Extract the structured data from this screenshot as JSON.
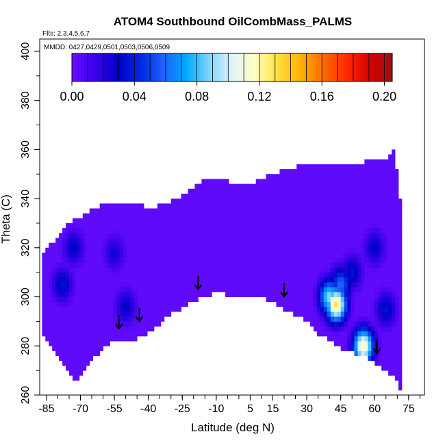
{
  "chart_data": {
    "type": "heatmap",
    "title": "ATOM4 Southbound OilCombMass_PALMS",
    "flights_note": "Flts: 2,3,4,5,6,7",
    "dates_note": "MMDD: 0427,0429,0501,0503,0506,0509",
    "xlabel": "Latitude (deg N)",
    "ylabel": "Theta (C)",
    "xlim": [
      -88,
      82
    ],
    "ylim": [
      260,
      405
    ],
    "x_ticks": [
      -85,
      -70,
      -55,
      -40,
      -25,
      -10,
      5,
      15,
      30,
      45,
      60,
      75
    ],
    "y_ticks": [
      260,
      280,
      300,
      320,
      340,
      360,
      380,
      400
    ],
    "colorbar": {
      "ticks": [
        "0.00",
        "0.04",
        "0.08",
        "0.12",
        "0.16",
        "0.20"
      ],
      "tick_values": [
        0.0,
        0.04,
        0.08,
        0.12,
        0.16,
        0.2
      ],
      "range": [
        0.0,
        0.205
      ],
      "colors": [
        "#6a0dff",
        "#3b00e8",
        "#0000c8",
        "#0028e0",
        "#2060ff",
        "#00aaff",
        "#80d4ff",
        "#e0f4ff",
        "#ffffc0",
        "#ffe040",
        "#ffb000",
        "#ff6a00",
        "#ff2a00",
        "#d40000",
        "#a01010"
      ]
    },
    "background_value": 0.003,
    "domain_top": [
      [
        -87,
        317
      ],
      [
        -75,
        330
      ],
      [
        -60,
        338
      ],
      [
        -48,
        339
      ],
      [
        -38,
        336
      ],
      [
        -25,
        341
      ],
      [
        -15,
        348
      ],
      [
        -5,
        347
      ],
      [
        5,
        346
      ],
      [
        15,
        350
      ],
      [
        25,
        353
      ],
      [
        40,
        354
      ],
      [
        55,
        355
      ],
      [
        65,
        356
      ],
      [
        69,
        360
      ],
      [
        71,
        340
      ]
    ],
    "domain_bottom": [
      [
        -87,
        286
      ],
      [
        -80,
        276
      ],
      [
        -75,
        269
      ],
      [
        -72,
        266
      ],
      [
        -68,
        271
      ],
      [
        -60,
        279
      ],
      [
        -55,
        282
      ],
      [
        -47,
        282
      ],
      [
        -40,
        285
      ],
      [
        -30,
        293
      ],
      [
        -20,
        298
      ],
      [
        -10,
        302
      ],
      [
        0,
        299
      ],
      [
        10,
        300
      ],
      [
        20,
        295
      ],
      [
        30,
        290
      ],
      [
        35,
        285
      ],
      [
        45,
        279
      ],
      [
        55,
        276
      ],
      [
        65,
        270
      ],
      [
        70,
        266
      ],
      [
        71,
        262
      ]
    ],
    "plumes": [
      {
        "lat": -78,
        "theta": 305,
        "value": 0.035
      },
      {
        "lat": -73,
        "theta": 320,
        "value": 0.03
      },
      {
        "lat": -55,
        "theta": 318,
        "value": 0.025
      },
      {
        "lat": -50,
        "theta": 296,
        "value": 0.03
      },
      {
        "lat": 40,
        "theta": 300,
        "value": 0.09
      },
      {
        "lat": 43,
        "theta": 297,
        "value": 0.13
      },
      {
        "lat": 45,
        "theta": 305,
        "value": 0.06
      },
      {
        "lat": 50,
        "theta": 310,
        "value": 0.035
      },
      {
        "lat": 55,
        "theta": 280,
        "value": 0.12
      },
      {
        "lat": 60,
        "theta": 320,
        "value": 0.03
      },
      {
        "lat": 65,
        "theta": 295,
        "value": 0.035
      }
    ],
    "arrows": [
      {
        "lat": -53,
        "theta": 287
      },
      {
        "lat": -44,
        "theta": 290
      },
      {
        "lat": -18,
        "theta": 303
      },
      {
        "lat": 20,
        "theta": 300
      },
      {
        "lat": 61,
        "theta": 277
      }
    ],
    "grid": false,
    "legend": "colorbar top"
  }
}
